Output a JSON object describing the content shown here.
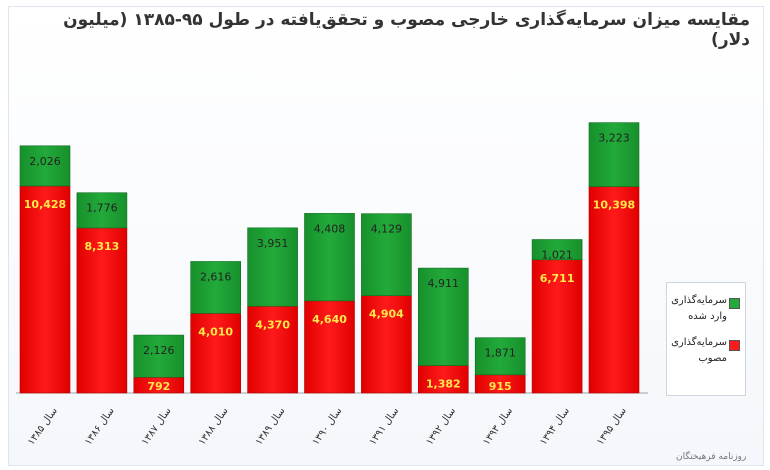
{
  "title": "مقایسه میزان سرمایه‌گذاری خارجی مصوب و تحقق‌یافته در طول ۹۵-۱۳۸۵ (میلیون دلار)",
  "watermark": "روزنامه فرهیختگان",
  "colors": {
    "approved": "#ff1a1a",
    "realized": "#22aa3a",
    "approved_label": "#ffe94a",
    "realized_label": "#222222"
  },
  "chart_data": {
    "type": "bar",
    "stacked": true,
    "title": "مقایسه میزان سرمایه‌گذاری خارجی مصوب و تحقق‌یافته در طول ۹۵-۱۳۸۵ (میلیون دلار)",
    "categories": [
      "سال ۱۳۸۵",
      "سال ۱۳۸۶",
      "سال ۱۳۸۷",
      "سال ۱۳۸۸",
      "سال ۱۳۸۹",
      "سال ۱۳۹۰",
      "سال ۱۳۹۱",
      "سال ۱۳۹۲",
      "سال ۱۳۹۳",
      "سال ۱۳۹۴",
      "سال ۱۳۹۵"
    ],
    "series": [
      {
        "name": "سرمایه‌گذاری مصوب",
        "values": [
          10428,
          8313,
          792,
          4010,
          4370,
          4640,
          4904,
          1382,
          915,
          6711,
          10398
        ],
        "labels": [
          "10,428",
          "8,313",
          "792",
          "4,010",
          "4,370",
          "4,640",
          "4,904",
          "1,382",
          "915",
          "6,711",
          "10,398"
        ]
      },
      {
        "name": "سرمایه‌گذاری وارد شده",
        "values": [
          2026,
          1776,
          2126,
          2616,
          3951,
          4408,
          4129,
          4911,
          1871,
          1021,
          3223
        ],
        "labels": [
          "2,026",
          "1,776",
          "2,126",
          "2,616",
          "3,951",
          "4,408",
          "4,129",
          "4,911",
          "1,871",
          "1,021",
          "3,223"
        ]
      }
    ],
    "grid": false,
    "legend": "right"
  },
  "legend": {
    "realized": "سرمایه‌گذاری وارد شده",
    "approved": "سرمایه‌گذاری مصوب"
  }
}
